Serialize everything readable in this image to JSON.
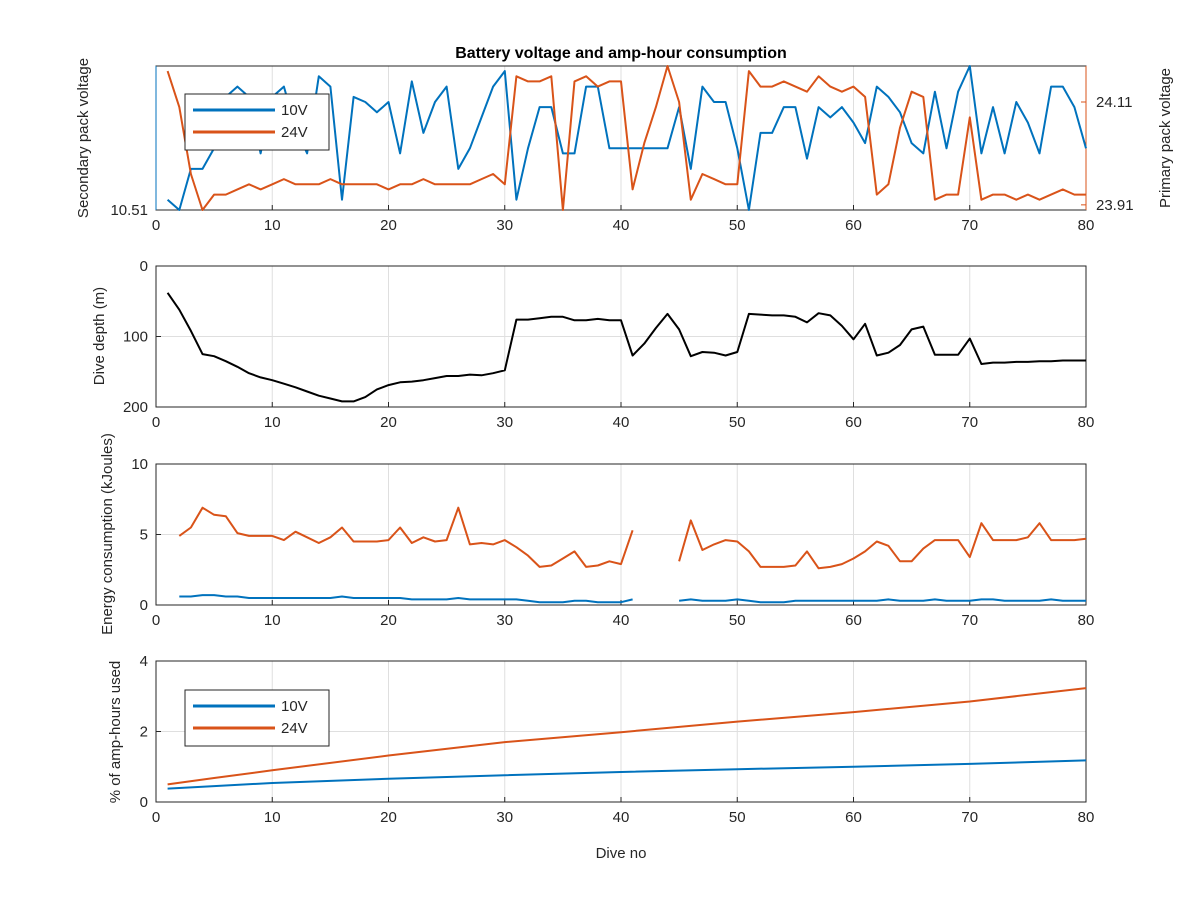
{
  "figure": {
    "title": "Battery voltage and amp-hour consumption",
    "colors": {
      "s10V": "#0072BD",
      "s24V": "#D95319",
      "depth": "#000000"
    }
  },
  "chart_data": [
    {
      "type": "line",
      "title": "Battery voltage and amp-hour consumption",
      "xlabel": "",
      "ylabel_left": "Secondary pack voltage",
      "ylabel_right": "Primary pack voltage",
      "xlim": [
        0,
        80
      ],
      "xticks": [
        0,
        10,
        20,
        30,
        40,
        50,
        60,
        70,
        80
      ],
      "ylim_left": [
        10.51,
        10.79
      ],
      "yticks_left": [
        10.51
      ],
      "ylim_right": [
        23.9,
        24.18
      ],
      "yticks_right": [
        23.91,
        24.11
      ],
      "grid": true,
      "legend": {
        "position": "top-left",
        "entries": [
          "10V",
          "24V"
        ]
      },
      "series": [
        {
          "name": "10V",
          "axis": "left",
          "x": [
            1,
            2,
            3,
            4,
            5,
            6,
            7,
            8,
            9,
            10,
            11,
            12,
            13,
            14,
            15,
            16,
            17,
            18,
            19,
            20,
            21,
            22,
            23,
            24,
            25,
            26,
            27,
            28,
            29,
            30,
            31,
            32,
            33,
            34,
            35,
            36,
            37,
            38,
            39,
            40,
            41,
            42,
            43,
            44,
            45,
            46,
            47,
            48,
            49,
            50,
            51,
            52,
            53,
            54,
            55,
            56,
            57,
            58,
            59,
            60,
            61,
            62,
            63,
            64,
            65,
            66,
            67,
            68,
            69,
            70,
            71,
            72,
            73,
            74,
            75,
            76,
            77,
            78,
            79,
            80
          ],
          "y": [
            10.53,
            10.51,
            10.59,
            10.59,
            10.63,
            10.73,
            10.75,
            10.73,
            10.62,
            10.73,
            10.75,
            10.67,
            10.62,
            10.77,
            10.75,
            10.53,
            10.73,
            10.72,
            10.7,
            10.72,
            10.62,
            10.76,
            10.66,
            10.72,
            10.75,
            10.59,
            10.63,
            10.69,
            10.75,
            10.78,
            10.53,
            10.63,
            10.71,
            10.71,
            10.62,
            10.62,
            10.75,
            10.75,
            10.63,
            10.63,
            10.63,
            10.63,
            10.63,
            10.63,
            10.71,
            10.59,
            10.75,
            10.72,
            10.72,
            10.63,
            10.51,
            10.66,
            10.66,
            10.71,
            10.71,
            10.61,
            10.71,
            10.69,
            10.71,
            10.68,
            10.64,
            10.75,
            10.73,
            10.7,
            10.64,
            10.62,
            10.74,
            10.63,
            10.74,
            10.79,
            10.62,
            10.71,
            10.62,
            10.72,
            10.68,
            10.62,
            10.75,
            10.75,
            10.71,
            10.63
          ]
        },
        {
          "name": "24V",
          "axis": "right",
          "x": [
            1,
            2,
            3,
            4,
            5,
            6,
            7,
            8,
            9,
            10,
            11,
            12,
            13,
            14,
            15,
            16,
            17,
            18,
            19,
            20,
            21,
            22,
            23,
            24,
            25,
            26,
            27,
            28,
            29,
            30,
            31,
            32,
            33,
            34,
            35,
            36,
            37,
            38,
            39,
            40,
            41,
            42,
            43,
            44,
            45,
            46,
            47,
            48,
            49,
            50,
            51,
            52,
            53,
            54,
            55,
            56,
            57,
            58,
            59,
            60,
            61,
            62,
            63,
            64,
            65,
            66,
            67,
            68,
            69,
            70,
            71,
            72,
            73,
            74,
            75,
            76,
            77,
            78,
            79,
            80
          ],
          "y": [
            24.17,
            24.1,
            23.97,
            23.9,
            23.93,
            23.93,
            23.94,
            23.95,
            23.94,
            23.95,
            23.96,
            23.95,
            23.95,
            23.95,
            23.96,
            23.95,
            23.95,
            23.95,
            23.95,
            23.94,
            23.95,
            23.95,
            23.96,
            23.95,
            23.95,
            23.95,
            23.95,
            23.96,
            23.97,
            23.95,
            24.16,
            24.15,
            24.15,
            24.16,
            23.9,
            24.15,
            24.16,
            24.14,
            24.15,
            24.15,
            23.94,
            24.03,
            24.1,
            24.18,
            24.11,
            23.92,
            23.97,
            23.96,
            23.95,
            23.95,
            24.17,
            24.14,
            24.14,
            24.15,
            24.14,
            24.13,
            24.16,
            24.14,
            24.13,
            24.14,
            24.12,
            23.93,
            23.95,
            24.06,
            24.13,
            24.12,
            23.92,
            23.93,
            23.93,
            24.08,
            23.92,
            23.93,
            23.93,
            23.92,
            23.93,
            23.92,
            23.93,
            23.94,
            23.93,
            23.93
          ]
        }
      ]
    },
    {
      "type": "line",
      "xlabel": "",
      "ylabel": "Dive depth (m)",
      "xlim": [
        0,
        80
      ],
      "xticks": [
        0,
        10,
        20,
        30,
        40,
        50,
        60,
        70,
        80
      ],
      "ylim": [
        0,
        200
      ],
      "y_reversed": true,
      "yticks": [
        0,
        100,
        200
      ],
      "grid": true,
      "series": [
        {
          "x": [
            1,
            2,
            3,
            4,
            5,
            6,
            7,
            8,
            9,
            10,
            11,
            12,
            13,
            14,
            15,
            16,
            17,
            18,
            19,
            20,
            21,
            22,
            23,
            24,
            25,
            26,
            27,
            28,
            29,
            30,
            31,
            32,
            33,
            34,
            35,
            36,
            37,
            38,
            39,
            40,
            41,
            42,
            43,
            44,
            45,
            46,
            47,
            48,
            49,
            50,
            51,
            52,
            53,
            54,
            55,
            56,
            57,
            58,
            59,
            60,
            61,
            62,
            63,
            64,
            65,
            66,
            67,
            68,
            69,
            70,
            71,
            72,
            73,
            74,
            75,
            76,
            77,
            78,
            79,
            80
          ],
          "y": [
            38,
            62,
            92,
            125,
            128,
            135,
            143,
            152,
            158,
            162,
            167,
            172,
            178,
            184,
            188,
            192,
            192,
            186,
            175,
            169,
            165,
            164,
            162,
            159,
            156,
            156,
            154,
            155,
            152,
            148,
            76,
            76,
            74,
            72,
            72,
            77,
            77,
            75,
            77,
            77,
            127,
            110,
            88,
            68,
            90,
            128,
            122,
            123,
            127,
            122,
            68,
            69,
            70,
            70,
            72,
            80,
            67,
            70,
            85,
            104,
            82,
            127,
            123,
            112,
            90,
            86,
            126,
            126,
            126,
            103,
            139,
            137,
            137,
            136,
            136,
            135,
            135,
            134,
            134,
            134
          ]
        }
      ]
    },
    {
      "type": "line",
      "xlabel": "",
      "ylabel": "Energy consumption (kJoules)",
      "xlim": [
        0,
        80
      ],
      "xticks": [
        0,
        10,
        20,
        30,
        40,
        50,
        60,
        70,
        80
      ],
      "ylim": [
        0,
        10
      ],
      "yticks": [
        0,
        5,
        10
      ],
      "grid": true,
      "series": [
        {
          "name": "10V",
          "x": [
            2,
            3,
            4,
            5,
            6,
            7,
            8,
            9,
            10,
            11,
            12,
            13,
            14,
            15,
            16,
            17,
            18,
            19,
            20,
            21,
            22,
            23,
            24,
            25,
            26,
            27,
            28,
            29,
            30,
            31,
            32,
            33,
            34,
            35,
            36,
            37,
            38,
            39,
            40,
            41,
            null,
            45,
            46,
            47,
            48,
            49,
            50,
            51,
            52,
            53,
            54,
            55,
            56,
            57,
            58,
            59,
            60,
            61,
            62,
            63,
            64,
            65,
            66,
            67,
            68,
            69,
            70,
            71,
            72,
            73,
            74,
            75,
            76,
            77,
            78,
            79,
            80
          ],
          "y": [
            0.6,
            0.6,
            0.7,
            0.7,
            0.6,
            0.6,
            0.5,
            0.5,
            0.5,
            0.5,
            0.5,
            0.5,
            0.5,
            0.5,
            0.6,
            0.5,
            0.5,
            0.5,
            0.5,
            0.5,
            0.4,
            0.4,
            0.4,
            0.4,
            0.5,
            0.4,
            0.4,
            0.4,
            0.4,
            0.4,
            0.3,
            0.2,
            0.2,
            0.2,
            0.3,
            0.3,
            0.2,
            0.2,
            0.2,
            0.4,
            null,
            0.3,
            0.4,
            0.3,
            0.3,
            0.3,
            0.4,
            0.3,
            0.2,
            0.2,
            0.2,
            0.3,
            0.3,
            0.3,
            0.3,
            0.3,
            0.3,
            0.3,
            0.3,
            0.4,
            0.3,
            0.3,
            0.3,
            0.4,
            0.3,
            0.3,
            0.3,
            0.4,
            0.4,
            0.3,
            0.3,
            0.3,
            0.3,
            0.4,
            0.3,
            0.3,
            0.3
          ]
        },
        {
          "name": "24V",
          "x": [
            2,
            3,
            4,
            5,
            6,
            7,
            8,
            9,
            10,
            11,
            12,
            13,
            14,
            15,
            16,
            17,
            18,
            19,
            20,
            21,
            22,
            23,
            24,
            25,
            26,
            27,
            28,
            29,
            30,
            31,
            32,
            33,
            34,
            35,
            36,
            37,
            38,
            39,
            40,
            41,
            null,
            45,
            46,
            47,
            48,
            49,
            50,
            51,
            52,
            53,
            54,
            55,
            56,
            57,
            58,
            59,
            60,
            61,
            62,
            63,
            64,
            65,
            66,
            67,
            68,
            69,
            70,
            71,
            72,
            73,
            74,
            75,
            76,
            77,
            78,
            79,
            80
          ],
          "y": [
            4.9,
            5.5,
            6.9,
            6.4,
            6.3,
            5.1,
            4.9,
            4.9,
            4.9,
            4.6,
            5.2,
            4.8,
            4.4,
            4.8,
            5.5,
            4.5,
            4.5,
            4.5,
            4.6,
            5.5,
            4.4,
            4.8,
            4.5,
            4.6,
            6.9,
            4.3,
            4.4,
            4.3,
            4.6,
            4.1,
            3.5,
            2.7,
            2.8,
            3.3,
            3.8,
            2.7,
            2.8,
            3.1,
            2.9,
            5.3,
            null,
            3.1,
            6.0,
            3.9,
            4.3,
            4.6,
            4.5,
            3.8,
            2.7,
            2.7,
            2.7,
            2.8,
            3.8,
            2.6,
            2.7,
            2.9,
            3.3,
            3.8,
            4.5,
            4.2,
            3.1,
            3.1,
            4.0,
            4.6,
            4.6,
            4.6,
            3.4,
            5.8,
            4.6,
            4.6,
            4.6,
            4.8,
            5.8,
            4.6,
            4.6,
            4.6,
            4.7
          ]
        }
      ]
    },
    {
      "type": "line",
      "xlabel": "Dive no",
      "ylabel": "% of amp-hours used",
      "xlim": [
        0,
        80
      ],
      "xticks": [
        0,
        10,
        20,
        30,
        40,
        50,
        60,
        70,
        80
      ],
      "ylim": [
        0,
        4
      ],
      "yticks": [
        0,
        2,
        4
      ],
      "grid": true,
      "legend": {
        "position": "top-left",
        "entries": [
          "10V",
          "24V"
        ]
      },
      "series": [
        {
          "name": "10V",
          "x": [
            1,
            5,
            10,
            20,
            30,
            40,
            50,
            60,
            70,
            80
          ],
          "y": [
            0.38,
            0.45,
            0.54,
            0.66,
            0.76,
            0.85,
            0.93,
            1.0,
            1.08,
            1.18
          ]
        },
        {
          "name": "24V",
          "x": [
            1,
            5,
            10,
            20,
            30,
            40,
            50,
            60,
            70,
            80
          ],
          "y": [
            0.5,
            0.68,
            0.9,
            1.32,
            1.7,
            1.98,
            2.28,
            2.55,
            2.85,
            3.23
          ]
        }
      ]
    }
  ]
}
